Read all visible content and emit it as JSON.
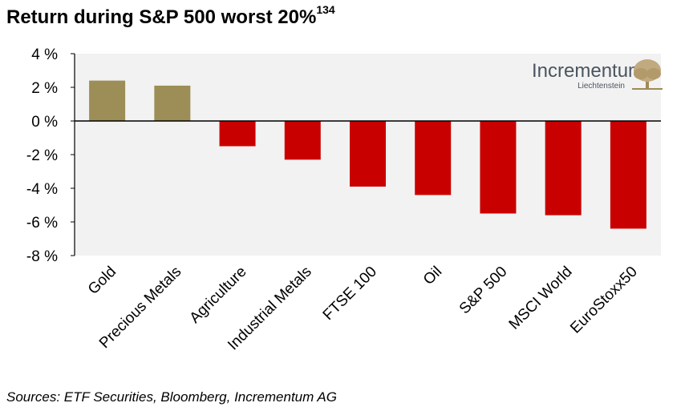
{
  "title": "Return during S&P 500 worst 20%",
  "title_footnote": "134",
  "source": "Sources: ETF Securities, Bloomberg, Incrementum AG",
  "logo": {
    "name": "Incrementum",
    "subtitle": "Liechtenstein",
    "icon": "tree-icon"
  },
  "colors": {
    "positive": "#9c8e56",
    "negative": "#c90000",
    "plot_background": "#f2f2f2"
  },
  "chart_data": {
    "type": "bar",
    "title": "Return during S&P 500 worst 20%",
    "categories": [
      "Gold",
      "Precious Metals",
      "Agriculture",
      "Industrial Metals",
      "FTSE 100",
      "Oil",
      "S&P 500",
      "MSCI World",
      "EuroStoxx50"
    ],
    "values": [
      2.4,
      2.1,
      -1.5,
      -2.3,
      -3.9,
      -4.4,
      -5.5,
      -5.6,
      -6.4
    ],
    "unit": "%",
    "ylim": [
      -8,
      4
    ],
    "yticks": [
      4,
      2,
      0,
      -2,
      -4,
      -6,
      -8
    ],
    "ytick_labels": [
      "4 %",
      "2 %",
      "0 %",
      "-2 %",
      "-4 %",
      "-6 %",
      "-8 %"
    ],
    "xlabel": "",
    "ylabel": "",
    "grid": false,
    "legend": "none"
  }
}
